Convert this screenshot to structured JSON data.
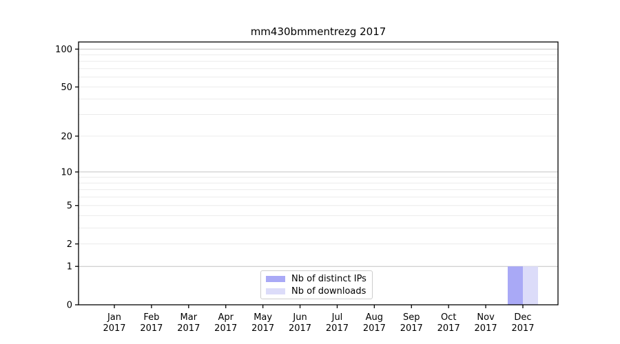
{
  "title": "mm430bmmentrezg 2017",
  "chart_data": {
    "type": "bar",
    "title": "mm430bmmentrezg 2017",
    "categories": [
      "Jan 2017",
      "Feb 2017",
      "Mar 2017",
      "Apr 2017",
      "May 2017",
      "Jun 2017",
      "Jul 2017",
      "Aug 2017",
      "Sep 2017",
      "Oct 2017",
      "Nov 2017",
      "Dec 2017"
    ],
    "series": [
      {
        "name": "Nb of distinct IPs",
        "color": "#a9a9f6",
        "values": [
          0,
          0,
          0,
          0,
          0,
          0,
          0,
          0,
          0,
          0,
          0,
          1
        ]
      },
      {
        "name": "Nb of downloads",
        "color": "#dcdcf9",
        "values": [
          0,
          0,
          0,
          0,
          0,
          0,
          0,
          0,
          0,
          0,
          0,
          1
        ]
      }
    ],
    "xlabel": "",
    "ylabel": "",
    "yscale": "log1p",
    "ylim": [
      0,
      114
    ],
    "yticks": [
      0,
      1,
      2,
      5,
      10,
      20,
      50,
      100
    ],
    "grid_major": [
      1,
      10,
      100
    ],
    "grid_minor": [
      2,
      3,
      4,
      5,
      6,
      7,
      8,
      9,
      20,
      30,
      40,
      50,
      60,
      70,
      80,
      90
    ],
    "grid": true,
    "legend_position": "lower center",
    "colors": {
      "grid_major": "#c3c3c3",
      "grid_minor": "#ebebeb",
      "axis": "#000000",
      "background": "#ffffff"
    }
  }
}
